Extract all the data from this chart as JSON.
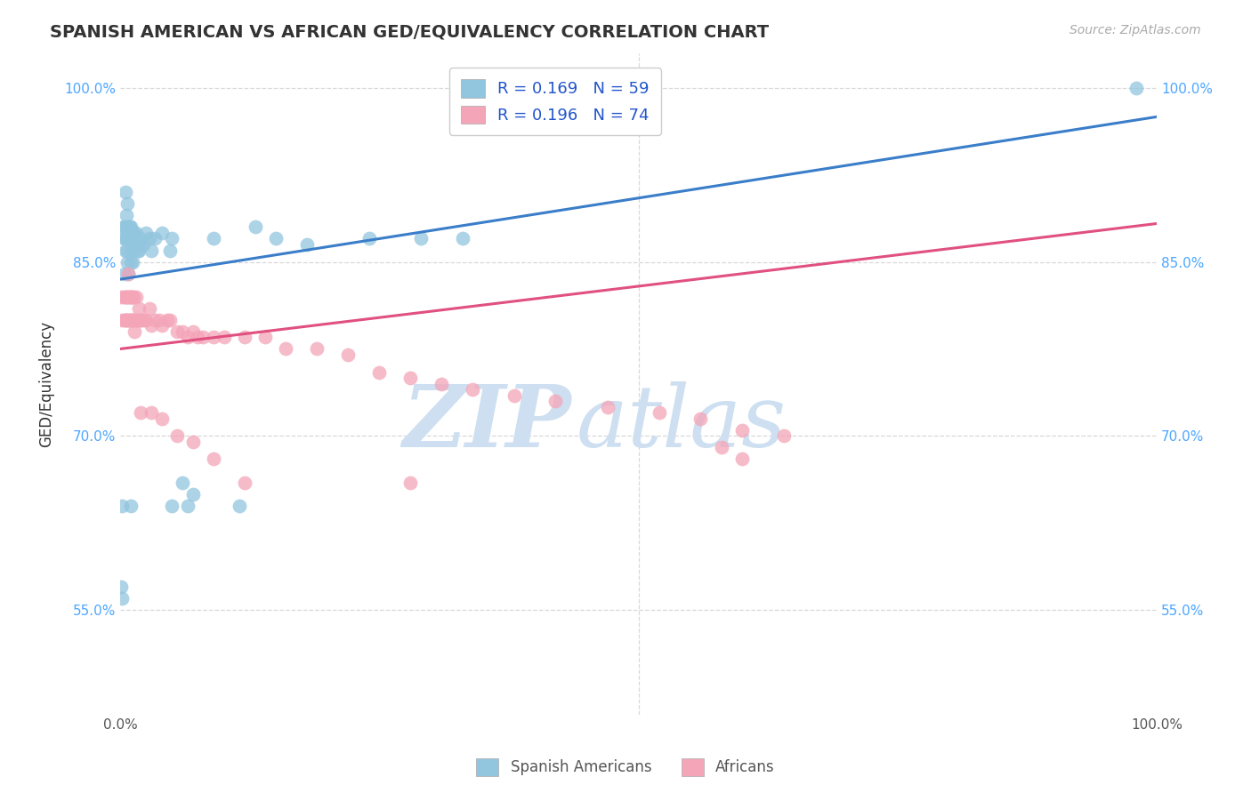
{
  "title": "SPANISH AMERICAN VS AFRICAN GED/EQUIVALENCY CORRELATION CHART",
  "source_text": "Source: ZipAtlas.com",
  "ylabel": "GED/Equivalency",
  "x_min": 0.0,
  "x_max": 1.0,
  "y_min": 0.46,
  "y_max": 1.03,
  "y_tick_labels": [
    "55.0%",
    "70.0%",
    "85.0%",
    "100.0%"
  ],
  "y_tick_values": [
    0.55,
    0.7,
    0.85,
    1.0
  ],
  "blue_color": "#92c5de",
  "pink_color": "#f4a5b8",
  "line_blue": "#3a7dc9",
  "line_pink": "#e05080",
  "legend_blue_label": "R = 0.169   N = 59",
  "legend_pink_label": "R = 0.196   N = 74",
  "legend_label_color": "#2255cc",
  "watermark_color": "#cddff0",
  "grid_color": "#d8d8d8",
  "bg_color": "#ffffff",
  "right_tick_color": "#4da6ff",
  "bottom_legend_labels": [
    "Spanish Americans",
    "Africans"
  ],
  "blue_line_x0": 0.0,
  "blue_line_y0": 0.835,
  "blue_line_x1": 1.0,
  "blue_line_y1": 0.975,
  "pink_line_x0": 0.0,
  "pink_line_y0": 0.775,
  "pink_line_x1": 1.0,
  "pink_line_y1": 0.883,
  "blue_scatter_x": [
    0.001,
    0.002,
    0.003,
    0.003,
    0.004,
    0.004,
    0.005,
    0.005,
    0.005,
    0.006,
    0.006,
    0.006,
    0.007,
    0.007,
    0.007,
    0.008,
    0.008,
    0.008,
    0.009,
    0.009,
    0.01,
    0.01,
    0.01,
    0.011,
    0.011,
    0.012,
    0.012,
    0.013,
    0.013,
    0.014,
    0.015,
    0.016,
    0.017,
    0.018,
    0.019,
    0.02,
    0.022,
    0.025,
    0.028,
    0.03,
    0.033,
    0.04,
    0.048,
    0.05,
    0.06,
    0.065,
    0.07,
    0.09,
    0.13,
    0.15,
    0.18,
    0.24,
    0.29,
    0.33,
    0.98,
    0.002,
    0.01,
    0.05,
    0.115
  ],
  "blue_scatter_y": [
    0.57,
    0.56,
    0.87,
    0.88,
    0.84,
    0.88,
    0.86,
    0.87,
    0.91,
    0.87,
    0.88,
    0.89,
    0.85,
    0.86,
    0.9,
    0.84,
    0.87,
    0.88,
    0.87,
    0.88,
    0.85,
    0.87,
    0.88,
    0.86,
    0.875,
    0.85,
    0.86,
    0.87,
    0.875,
    0.87,
    0.875,
    0.87,
    0.86,
    0.86,
    0.87,
    0.865,
    0.865,
    0.875,
    0.87,
    0.86,
    0.87,
    0.875,
    0.86,
    0.87,
    0.66,
    0.64,
    0.65,
    0.87,
    0.88,
    0.87,
    0.865,
    0.87,
    0.87,
    0.87,
    1.0,
    0.64,
    0.64,
    0.64,
    0.64
  ],
  "pink_scatter_x": [
    0.001,
    0.002,
    0.003,
    0.004,
    0.005,
    0.005,
    0.006,
    0.006,
    0.007,
    0.007,
    0.008,
    0.008,
    0.008,
    0.009,
    0.009,
    0.01,
    0.01,
    0.011,
    0.011,
    0.012,
    0.012,
    0.013,
    0.013,
    0.014,
    0.015,
    0.015,
    0.016,
    0.017,
    0.018,
    0.019,
    0.02,
    0.022,
    0.025,
    0.028,
    0.03,
    0.033,
    0.038,
    0.04,
    0.045,
    0.048,
    0.055,
    0.06,
    0.065,
    0.07,
    0.075,
    0.08,
    0.09,
    0.1,
    0.12,
    0.14,
    0.16,
    0.19,
    0.22,
    0.25,
    0.28,
    0.31,
    0.34,
    0.38,
    0.42,
    0.47,
    0.52,
    0.56,
    0.6,
    0.64,
    0.58,
    0.02,
    0.03,
    0.04,
    0.055,
    0.07,
    0.09,
    0.12,
    0.28,
    0.6
  ],
  "pink_scatter_y": [
    0.82,
    0.8,
    0.82,
    0.8,
    0.8,
    0.82,
    0.8,
    0.82,
    0.8,
    0.82,
    0.8,
    0.82,
    0.84,
    0.8,
    0.82,
    0.8,
    0.82,
    0.8,
    0.82,
    0.8,
    0.82,
    0.8,
    0.82,
    0.79,
    0.8,
    0.82,
    0.8,
    0.8,
    0.81,
    0.8,
    0.8,
    0.8,
    0.8,
    0.81,
    0.795,
    0.8,
    0.8,
    0.795,
    0.8,
    0.8,
    0.79,
    0.79,
    0.785,
    0.79,
    0.785,
    0.785,
    0.785,
    0.785,
    0.785,
    0.785,
    0.775,
    0.775,
    0.77,
    0.755,
    0.75,
    0.745,
    0.74,
    0.735,
    0.73,
    0.725,
    0.72,
    0.715,
    0.705,
    0.7,
    0.69,
    0.72,
    0.72,
    0.715,
    0.7,
    0.695,
    0.68,
    0.66,
    0.66,
    0.68
  ]
}
